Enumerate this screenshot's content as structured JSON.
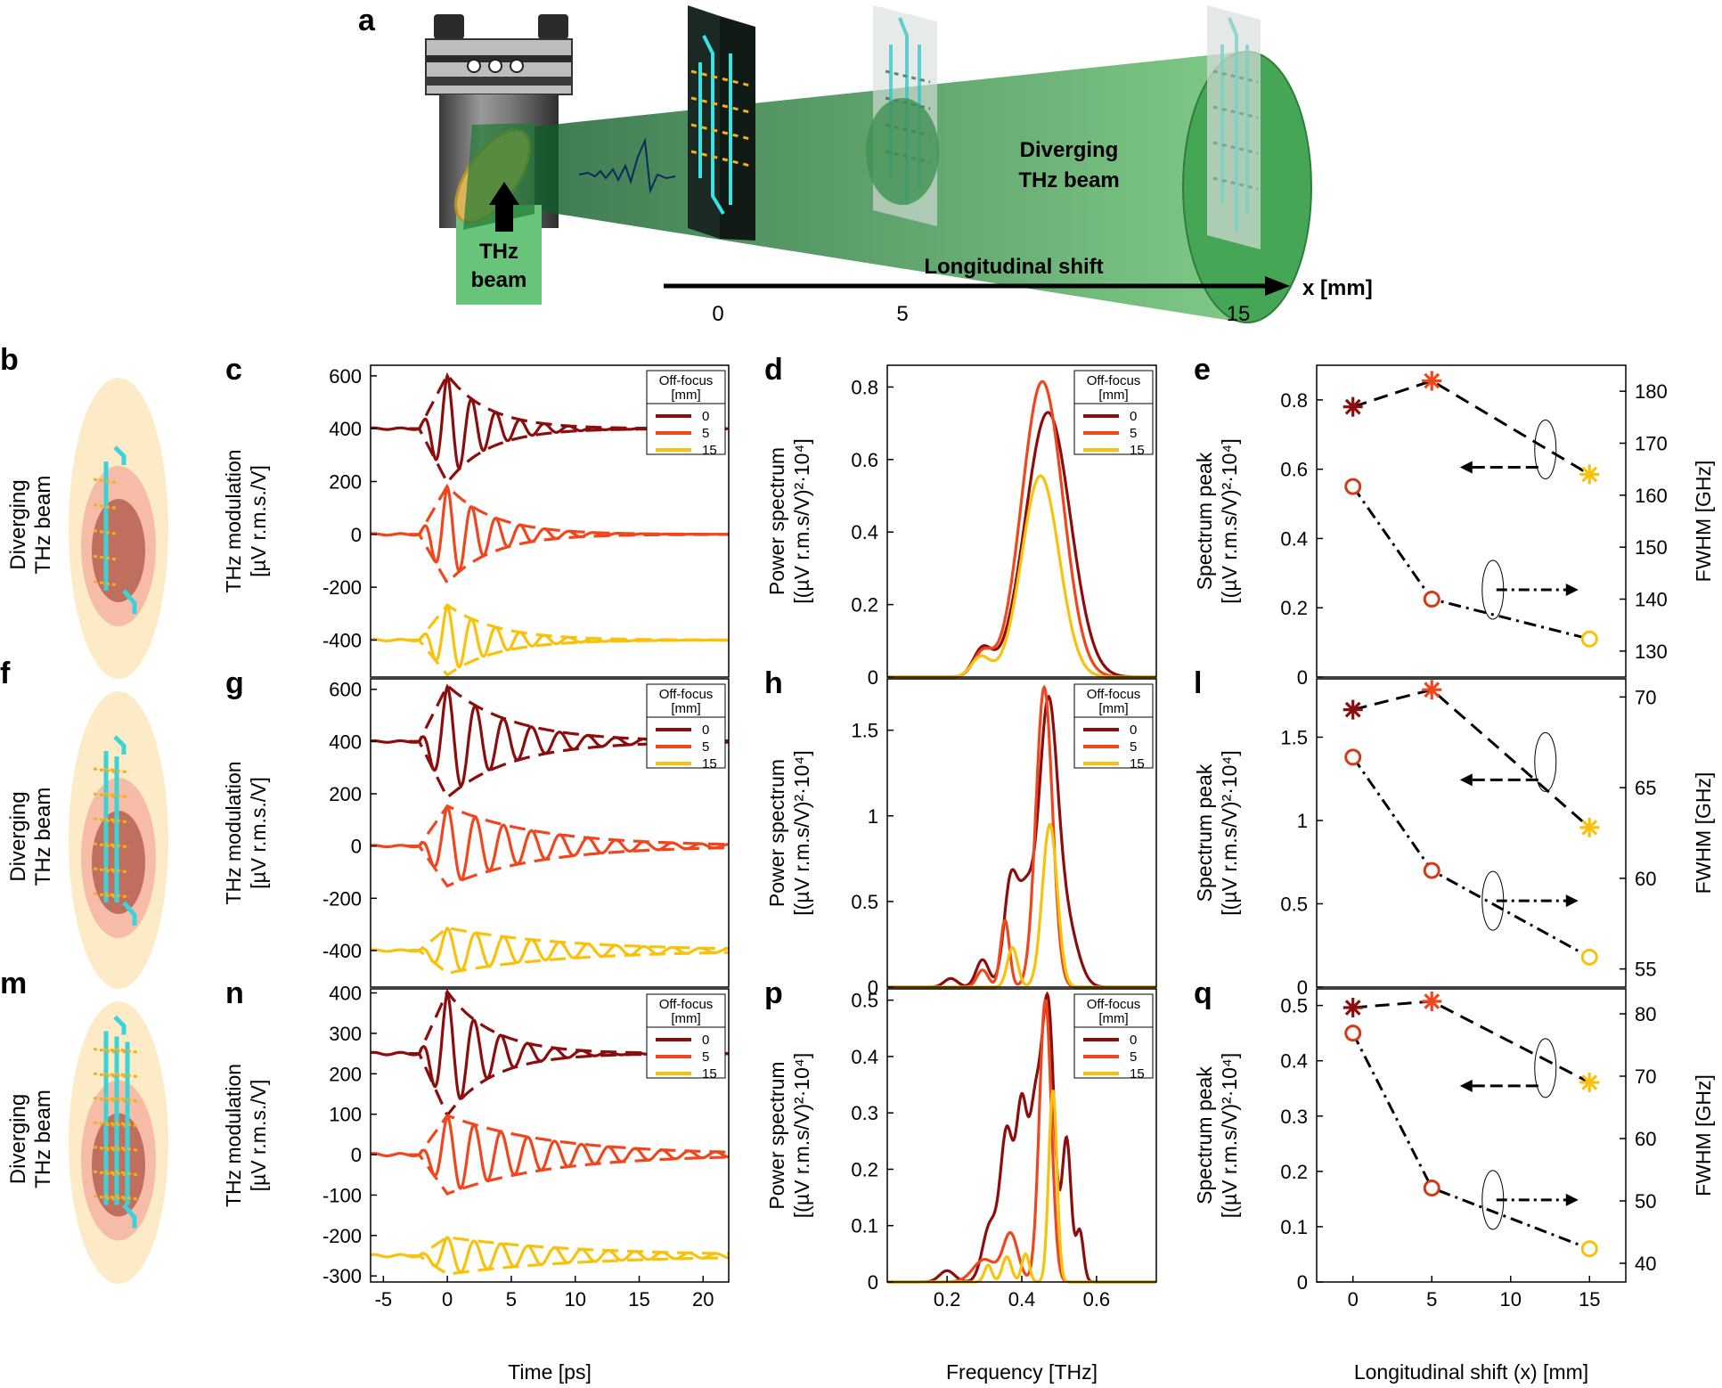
{
  "figure": {
    "setup": {
      "panel_label": "a",
      "thz_beam_label": [
        "THz",
        "beam"
      ],
      "diverging_label": [
        "Diverging",
        "THz beam"
      ],
      "shift_label": "Longitudinal shift",
      "axis_unit": "x [mm]",
      "positions": [
        "0",
        "5",
        "15"
      ]
    },
    "rows": [
      {
        "diagram_label": "b",
        "time_label": "c",
        "spec_label": "d",
        "peak_label": "e",
        "arms": 1
      },
      {
        "diagram_label": "f",
        "time_label": "g",
        "spec_label": "h",
        "peak_label": "l",
        "arms": 2
      },
      {
        "diagram_label": "m",
        "time_label": "n",
        "spec_label": "p",
        "peak_label": "q",
        "arms": 3
      }
    ],
    "diagram_text": [
      "Diverging",
      "THz beam"
    ],
    "legend": {
      "title": [
        "Off-focus",
        "[mm]"
      ],
      "entries": [
        "0",
        "5",
        "15"
      ]
    },
    "colors": {
      "s0": "#8b0d0d",
      "s5": "#f0461e",
      "s15": "#f8c20c",
      "ring": "#d23a18"
    }
  },
  "chart_data": [
    {
      "panel": "c",
      "type": "line",
      "ylabel": [
        "THz modulation",
        "[µV r.m.s./V]"
      ],
      "xlim": [
        -6,
        22
      ],
      "ylim": [
        -540,
        640
      ],
      "yticks": [
        -400,
        -200,
        0,
        200,
        400,
        600
      ],
      "series": [
        {
          "name": "0",
          "offset": 400,
          "amp": 200,
          "period": 1.9,
          "tau": 3.2,
          "envelope": "dashed"
        },
        {
          "name": "5",
          "offset": 0,
          "amp": 180,
          "period": 1.9,
          "tau": 3.5,
          "envelope": "dashed"
        },
        {
          "name": "15",
          "offset": -400,
          "amp": 130,
          "period": 1.9,
          "tau": 3.8,
          "envelope": "dashed"
        }
      ]
    },
    {
      "panel": "d",
      "type": "line",
      "xlabel": "",
      "ylabel": [
        "Power spectrum",
        "[(µV r.m.s/V)²·10⁴]"
      ],
      "xlim": [
        0.04,
        0.76
      ],
      "ylim": [
        0,
        0.86
      ],
      "yticks": [
        0,
        0.2,
        0.4,
        0.6,
        0.8
      ],
      "yticklabels": [
        "0",
        "0.2",
        "0.4",
        "0.6",
        "0.8"
      ],
      "series": [
        {
          "name": "0",
          "peaks": [
            [
              0.295,
              0.075,
              0.025
            ],
            [
              0.47,
              0.73,
              0.06
            ]
          ]
        },
        {
          "name": "5",
          "peaks": [
            [
              0.295,
              0.065,
              0.025
            ],
            [
              0.455,
              0.815,
              0.055
            ]
          ]
        },
        {
          "name": "15",
          "peaks": [
            [
              0.29,
              0.055,
              0.025
            ],
            [
              0.45,
              0.555,
              0.05
            ]
          ]
        }
      ]
    },
    {
      "panel": "e",
      "type": "scatter",
      "xlim": [
        -2.3,
        17.3
      ],
      "ylim": [
        0,
        0.9
      ],
      "y2lim": [
        125,
        185
      ],
      "yticks": [
        0,
        0.2,
        0.4,
        0.6,
        0.8
      ],
      "yticklabels": [
        "0",
        "0.2",
        "0.4",
        "0.6",
        "0.8"
      ],
      "y2ticks": [
        130,
        140,
        150,
        160,
        170,
        180
      ],
      "ylabel": [
        "Spectrum peak",
        "[(µV r.m.s/V)²·10⁴]"
      ],
      "y2label": "FWHM [GHz]",
      "x": [
        0,
        5,
        15
      ],
      "spectrum_peak": [
        0.55,
        0.225,
        0.11
      ],
      "fwhm": [
        177,
        182,
        164
      ]
    },
    {
      "panel": "g",
      "type": "line",
      "ylabel": [
        "THz modulation",
        "[µV r.m.s./V]"
      ],
      "xlim": [
        -6,
        22
      ],
      "ylim": [
        -540,
        640
      ],
      "yticks": [
        -400,
        -200,
        0,
        200,
        400,
        600
      ],
      "series": [
        {
          "name": "0",
          "offset": 400,
          "amp": 210,
          "period": 2.2,
          "tau": 5.0,
          "envelope": "dashed"
        },
        {
          "name": "5",
          "offset": 0,
          "amp": 150,
          "period": 2.2,
          "tau": 7.0,
          "envelope": "dashed"
        },
        {
          "name": "15",
          "offset": -400,
          "amp": 85,
          "period": 2.2,
          "tau": 9.0,
          "envelope": "dashed"
        }
      ]
    },
    {
      "panel": "h",
      "type": "line",
      "xlabel": "",
      "ylabel": [
        "Power spectrum",
        "[(µV r.m.s/V)²·10⁴]"
      ],
      "xlim": [
        0.04,
        0.76
      ],
      "ylim": [
        0,
        1.8
      ],
      "yticks": [
        0,
        0.5,
        1,
        1.5
      ],
      "yticklabels": [
        "0",
        "0.5",
        "1",
        "1.5"
      ],
      "series": [
        {
          "name": "0",
          "peaks": [
            [
              0.21,
              0.05,
              0.018
            ],
            [
              0.295,
              0.16,
              0.017
            ],
            [
              0.37,
              0.6,
              0.018
            ],
            [
              0.41,
              0.5,
              0.02
            ],
            [
              0.47,
              1.6,
              0.025
            ],
            [
              0.52,
              0.35,
              0.03
            ]
          ]
        },
        {
          "name": "5",
          "peaks": [
            [
              0.295,
              0.1,
              0.015
            ],
            [
              0.355,
              0.39,
              0.012
            ],
            [
              0.46,
              1.75,
              0.022
            ]
          ]
        },
        {
          "name": "15",
          "peaks": [
            [
              0.375,
              0.23,
              0.014
            ],
            [
              0.475,
              0.95,
              0.02
            ]
          ]
        }
      ]
    },
    {
      "panel": "l",
      "type": "scatter",
      "xlim": [
        -2.3,
        17.3
      ],
      "ylim": [
        0,
        1.85
      ],
      "y2lim": [
        54,
        71
      ],
      "yticks": [
        0,
        0.5,
        1,
        1.5
      ],
      "yticklabels": [
        "0",
        "0.5",
        "1",
        "1.5"
      ],
      "y2ticks": [
        55,
        60,
        65,
        70
      ],
      "ylabel": [
        "Spectrum peak",
        "[(µV r.m.s/V)²·10⁴]"
      ],
      "y2label": "FWHM [GHz]",
      "x": [
        0,
        5,
        15
      ],
      "spectrum_peak": [
        1.38,
        0.7,
        0.18
      ],
      "fwhm": [
        69.3,
        70.4,
        62.8
      ]
    },
    {
      "panel": "n",
      "type": "line",
      "xlabel": "Time [ps]",
      "ylabel": [
        "THz modulation",
        "[µV r.m.s./V]"
      ],
      "xlim": [
        -6,
        22
      ],
      "ylim": [
        -315,
        410
      ],
      "xticks": [
        -5,
        0,
        5,
        10,
        15,
        20
      ],
      "yticks": [
        -300,
        -200,
        -100,
        0,
        100,
        200,
        300,
        400
      ],
      "series": [
        {
          "name": "0",
          "offset": 250,
          "amp": 150,
          "period": 2.1,
          "tau": 3.5,
          "envelope": "dashed"
        },
        {
          "name": "5",
          "offset": 0,
          "amp": 95,
          "period": 2.1,
          "tau": 8.0,
          "envelope": "dashed"
        },
        {
          "name": "15",
          "offset": -250,
          "amp": 45,
          "period": 2.1,
          "tau": 10.0,
          "envelope": "dashed"
        }
      ]
    },
    {
      "panel": "p",
      "type": "line",
      "xlabel": "Frequency [THz]",
      "ylabel": [
        "Power spectrum",
        "[(µV r.m.s/V)²·10⁴]"
      ],
      "xlim": [
        0.04,
        0.76
      ],
      "ylim": [
        0,
        0.52
      ],
      "xticks": [
        0.2,
        0.4,
        0.6
      ],
      "xticklabels": [
        "0.2",
        "0.4",
        "0.6"
      ],
      "yticks": [
        0,
        0.1,
        0.2,
        0.3,
        0.4,
        0.5
      ],
      "yticklabels": [
        "0",
        "0.1",
        "0.2",
        "0.3",
        "0.4",
        "0.5"
      ],
      "series": [
        {
          "name": "0",
          "peaks": [
            [
              0.2,
              0.02,
              0.02
            ],
            [
              0.315,
              0.1,
              0.02
            ],
            [
              0.36,
              0.26,
              0.017
            ],
            [
              0.4,
              0.3,
              0.015
            ],
            [
              0.435,
              0.27,
              0.015
            ],
            [
              0.47,
              0.49,
              0.017
            ],
            [
              0.52,
              0.25,
              0.012
            ],
            [
              0.555,
              0.09,
              0.01
            ]
          ]
        },
        {
          "name": "5",
          "peaks": [
            [
              0.3,
              0.04,
              0.03
            ],
            [
              0.37,
              0.085,
              0.02
            ],
            [
              0.463,
              0.5,
              0.016
            ]
          ]
        },
        {
          "name": "15",
          "peaks": [
            [
              0.31,
              0.03,
              0.01
            ],
            [
              0.36,
              0.045,
              0.012
            ],
            [
              0.41,
              0.05,
              0.01
            ],
            [
              0.483,
              0.34,
              0.011
            ]
          ]
        }
      ]
    },
    {
      "panel": "q",
      "type": "scatter",
      "xlabel": "Longitudinal shift (x) [mm]",
      "xlim": [
        -2.3,
        17.3
      ],
      "ylim": [
        0,
        0.53
      ],
      "y2lim": [
        37,
        84
      ],
      "xticks": [
        0,
        5,
        10,
        15
      ],
      "yticks": [
        0,
        0.1,
        0.2,
        0.3,
        0.4,
        0.5
      ],
      "yticklabels": [
        "0",
        "0.1",
        "0.2",
        "0.3",
        "0.4",
        "0.5"
      ],
      "y2ticks": [
        40,
        50,
        60,
        70,
        80
      ],
      "ylabel": [
        "Spectrum peak",
        "[(µV r.m.s/V)²·10⁴]"
      ],
      "y2label": "FWHM [GHz]",
      "x": [
        0,
        5,
        15
      ],
      "spectrum_peak": [
        0.45,
        0.17,
        0.06
      ],
      "fwhm": [
        81,
        82,
        69
      ]
    }
  ]
}
